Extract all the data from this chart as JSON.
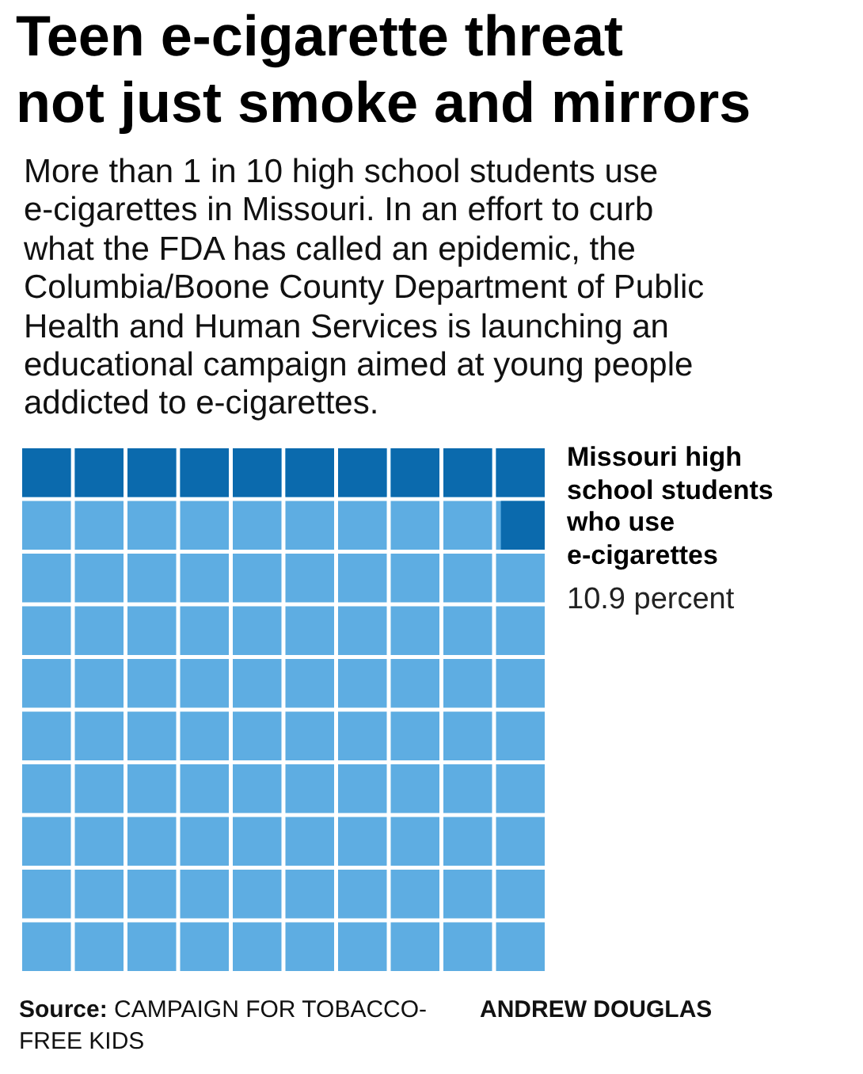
{
  "chart_data": {
    "type": "other",
    "title": "Teen e-cigarette threat\nnot just smoke and mirrors",
    "subtitle": "More than 1 in 10 high school students use e-cigarettes in Missouri. In an effort to curb what the FDA has called an epidemic, the Columbia/Boone County Department of Public Health and Human Services is launching an educational campaign aimed at young people addicted to e-cigarettes.",
    "categories": [
      "Missouri high school students who use e-cigarettes"
    ],
    "values": [
      10.9
    ],
    "value_labels": [
      "10.9 percent"
    ],
    "colors": [
      "#0b6aad"
    ],
    "color": "#5eade2",
    "annotations": [
      "Source: CAMPAIGN FOR TOBACCO-FREE KIDS",
      "ANDREW DOUGLAS"
    ]
  }
}
